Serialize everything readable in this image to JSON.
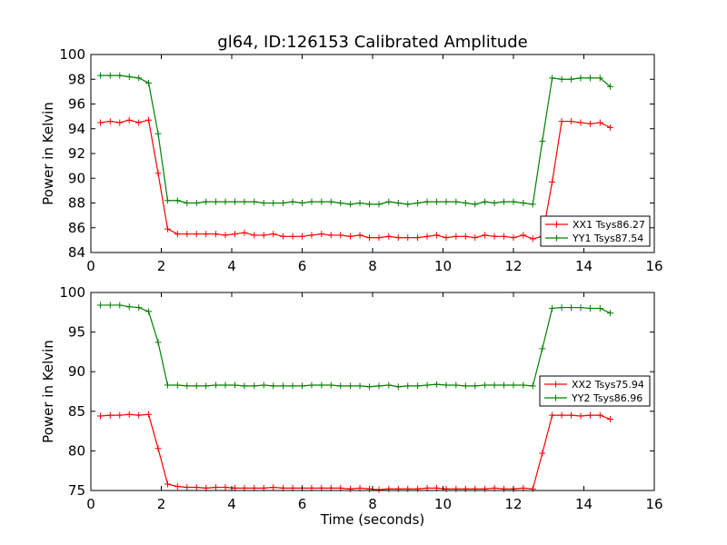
{
  "figure": {
    "title": "gl64, ID:126153 Calibrated Amplitude"
  },
  "chart_data": [
    {
      "type": "line",
      "title": "gl64, ID:126153 Calibrated Amplitude",
      "xlabel": "",
      "ylabel": "Power in Kelvin",
      "xlim": [
        0,
        16
      ],
      "ylim": [
        84,
        100
      ],
      "xticks": [
        "0",
        "2",
        "4",
        "6",
        "8",
        "10",
        "12",
        "14",
        "16"
      ],
      "yticks": [
        "84",
        "86",
        "88",
        "90",
        "92",
        "94",
        "96",
        "98",
        "100"
      ],
      "grid": false,
      "legend_position": "lower-right",
      "x": [
        0.27,
        0.55,
        0.82,
        1.09,
        1.36,
        1.64,
        1.91,
        2.18,
        2.46,
        2.73,
        3.0,
        3.27,
        3.55,
        3.82,
        4.09,
        4.36,
        4.64,
        4.91,
        5.18,
        5.46,
        5.73,
        6.0,
        6.27,
        6.55,
        6.82,
        7.09,
        7.37,
        7.64,
        7.91,
        8.18,
        8.46,
        8.73,
        9.0,
        9.28,
        9.55,
        9.82,
        10.09,
        10.37,
        10.64,
        10.91,
        11.19,
        11.46,
        11.73,
        12.0,
        12.28,
        12.55,
        12.82,
        13.1,
        13.37,
        13.64,
        13.91,
        14.18,
        14.46,
        14.75
      ],
      "series": [
        {
          "name": "XX1 Tsys86.27",
          "color": "#ff0000",
          "values": [
            94.5,
            94.6,
            94.5,
            94.7,
            94.5,
            94.7,
            90.4,
            85.9,
            85.5,
            85.5,
            85.5,
            85.5,
            85.5,
            85.4,
            85.5,
            85.6,
            85.4,
            85.4,
            85.5,
            85.3,
            85.3,
            85.3,
            85.4,
            85.5,
            85.4,
            85.4,
            85.3,
            85.4,
            85.2,
            85.2,
            85.3,
            85.2,
            85.2,
            85.2,
            85.3,
            85.4,
            85.2,
            85.3,
            85.3,
            85.2,
            85.4,
            85.3,
            85.3,
            85.2,
            85.4,
            85.1,
            85.3,
            89.7,
            94.6,
            94.6,
            94.5,
            94.4,
            94.5,
            94.1
          ]
        },
        {
          "name": "YY1 Tsys87.54",
          "color": "#008000",
          "values": [
            98.3,
            98.3,
            98.3,
            98.2,
            98.1,
            97.7,
            93.6,
            88.2,
            88.2,
            88.0,
            88.0,
            88.1,
            88.1,
            88.1,
            88.1,
            88.1,
            88.1,
            88.0,
            88.0,
            88.0,
            88.1,
            88.0,
            88.1,
            88.1,
            88.1,
            88.0,
            87.9,
            88.0,
            87.9,
            87.9,
            88.1,
            88.0,
            87.9,
            88.0,
            88.1,
            88.1,
            88.1,
            88.1,
            88.0,
            87.9,
            88.1,
            88.0,
            88.1,
            88.1,
            88.0,
            87.9,
            93.0,
            98.1,
            98.0,
            98.0,
            98.1,
            98.1,
            98.1,
            97.4
          ]
        }
      ]
    },
    {
      "type": "line",
      "title": "",
      "xlabel": "Time (seconds)",
      "ylabel": "Power in Kelvin",
      "xlim": [
        0,
        16
      ],
      "ylim": [
        75,
        100
      ],
      "xticks": [
        "0",
        "2",
        "4",
        "6",
        "8",
        "10",
        "12",
        "14",
        "16"
      ],
      "yticks": [
        "75",
        "80",
        "85",
        "90",
        "95",
        "100"
      ],
      "grid": false,
      "legend_position": "center-right",
      "x": [
        0.27,
        0.55,
        0.82,
        1.09,
        1.36,
        1.64,
        1.91,
        2.18,
        2.46,
        2.73,
        3.0,
        3.27,
        3.55,
        3.82,
        4.09,
        4.36,
        4.64,
        4.91,
        5.18,
        5.46,
        5.73,
        6.0,
        6.27,
        6.55,
        6.82,
        7.09,
        7.37,
        7.64,
        7.91,
        8.18,
        8.46,
        8.73,
        9.0,
        9.28,
        9.55,
        9.82,
        10.09,
        10.37,
        10.64,
        10.91,
        11.19,
        11.46,
        11.73,
        12.0,
        12.28,
        12.55,
        12.82,
        13.1,
        13.37,
        13.64,
        13.91,
        14.18,
        14.46,
        14.75
      ],
      "series": [
        {
          "name": "XX2 Tsys75.94",
          "color": "#ff0000",
          "values": [
            84.4,
            84.5,
            84.5,
            84.6,
            84.5,
            84.6,
            80.3,
            75.8,
            75.5,
            75.4,
            75.4,
            75.3,
            75.4,
            75.4,
            75.3,
            75.3,
            75.3,
            75.3,
            75.4,
            75.3,
            75.3,
            75.3,
            75.3,
            75.3,
            75.3,
            75.3,
            75.2,
            75.3,
            75.2,
            75.1,
            75.2,
            75.2,
            75.2,
            75.2,
            75.3,
            75.3,
            75.2,
            75.2,
            75.2,
            75.2,
            75.2,
            75.3,
            75.2,
            75.2,
            75.3,
            75.2,
            79.7,
            84.5,
            84.5,
            84.5,
            84.4,
            84.5,
            84.5,
            84.0
          ]
        },
        {
          "name": "YY2 Tsys86.96",
          "color": "#008000",
          "values": [
            98.4,
            98.4,
            98.4,
            98.2,
            98.1,
            97.6,
            93.7,
            88.3,
            88.3,
            88.2,
            88.2,
            88.2,
            88.3,
            88.3,
            88.3,
            88.2,
            88.2,
            88.3,
            88.2,
            88.2,
            88.2,
            88.2,
            88.3,
            88.3,
            88.3,
            88.2,
            88.2,
            88.2,
            88.1,
            88.2,
            88.3,
            88.1,
            88.2,
            88.2,
            88.3,
            88.4,
            88.3,
            88.3,
            88.2,
            88.2,
            88.3,
            88.3,
            88.3,
            88.3,
            88.3,
            88.2,
            92.9,
            98.0,
            98.1,
            98.1,
            98.1,
            98.0,
            98.0,
            97.4
          ]
        }
      ]
    }
  ]
}
